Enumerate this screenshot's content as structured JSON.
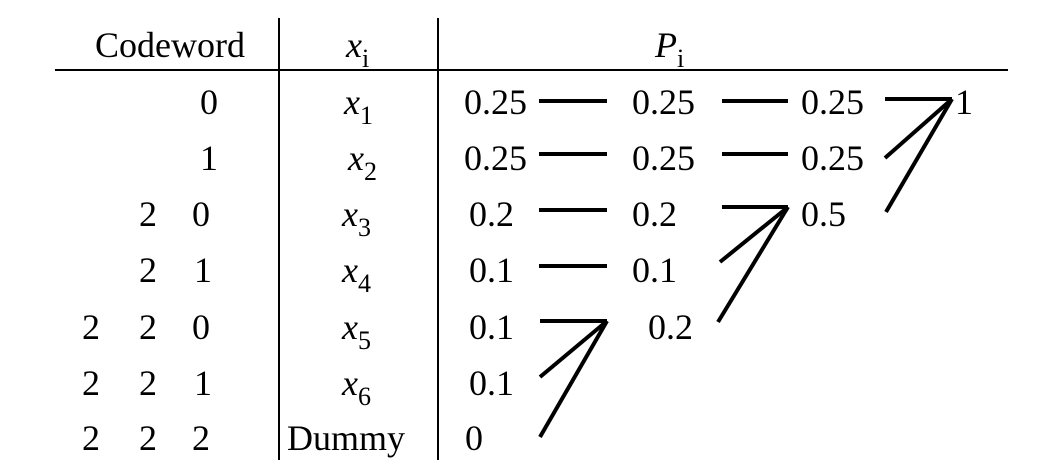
{
  "table": {
    "headers": {
      "codeword": "Codeword",
      "symbol": "x",
      "symbol_sub": "i",
      "prob": "P",
      "prob_sub": "i"
    },
    "rows": [
      {
        "code": [
          "0"
        ],
        "sym": "x",
        "sub": "1",
        "p0": "0.25"
      },
      {
        "code": [
          "1"
        ],
        "sym": "x",
        "sub": "2",
        "p0": "0.25"
      },
      {
        "code": [
          "2",
          "0"
        ],
        "sym": "x",
        "sub": "3",
        "p0": "0.2"
      },
      {
        "code": [
          "2",
          "1"
        ],
        "sym": "x",
        "sub": "4",
        "p0": "0.1"
      },
      {
        "code": [
          "2",
          "2",
          "0"
        ],
        "sym": "x",
        "sub": "5",
        "p0": "0.1"
      },
      {
        "code": [
          "2",
          "2",
          "1"
        ],
        "sym": "x",
        "sub": "6",
        "p0": "0.1"
      },
      {
        "code": [
          "2",
          "2",
          "2"
        ],
        "sym": "Dummy",
        "sub": "",
        "p0": "0"
      }
    ]
  },
  "stages": {
    "stage2": [
      "0.25",
      "0.25",
      "0.2",
      "0.1",
      "0.2"
    ],
    "stage3": [
      "0.25",
      "0.25",
      "0.5"
    ],
    "stage4": [
      "1"
    ]
  }
}
